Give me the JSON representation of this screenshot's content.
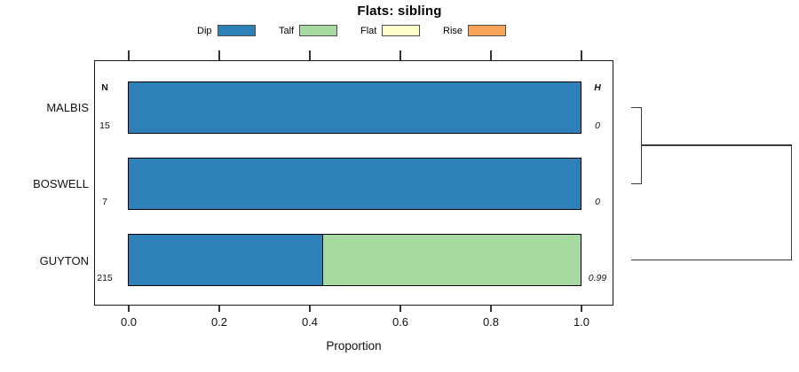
{
  "title": "Flats: sibling",
  "legend": {
    "items": [
      {
        "label": "Dip",
        "color": "#2d81b8"
      },
      {
        "label": "Talf",
        "color": "#a7daa1"
      },
      {
        "label": "Flat",
        "color": "#ffffcc"
      },
      {
        "label": "Rise",
        "color": "#f7a458"
      }
    ]
  },
  "chart_data": {
    "type": "bar",
    "orientation": "horizontal_stacked",
    "title": "Flats: sibling",
    "xlabel": "Proportion",
    "xlim": [
      0.0,
      1.0
    ],
    "x_ticks": [
      "0.0",
      "0.2",
      "0.4",
      "0.6",
      "0.8",
      "1.0"
    ],
    "grid": false,
    "legend_position": "top",
    "categories": [
      "MALBIS",
      "BOSWELL",
      "GUYTON"
    ],
    "series": [
      {
        "name": "Dip",
        "color": "#2d81b8",
        "values": [
          1.0,
          1.0,
          0.43
        ]
      },
      {
        "name": "Talf",
        "color": "#a7daa1",
        "values": [
          0,
          0,
          0.57
        ]
      },
      {
        "name": "Flat",
        "color": "#ffffcc",
        "values": [
          0,
          0,
          0
        ]
      },
      {
        "name": "Rise",
        "color": "#f7a458",
        "values": [
          0,
          0,
          0
        ]
      }
    ],
    "n_header": "N",
    "h_header": "H",
    "rows": [
      {
        "label": "MALBIS",
        "n": "15",
        "h": "0"
      },
      {
        "label": "BOSWELL",
        "n": "7",
        "h": "0"
      },
      {
        "label": "GUYTON",
        "n": "215",
        "h": "0.99"
      }
    ],
    "annotations": {
      "dendrogram": "MALBIS and BOSWELL merge first, then join GUYTON at greater height",
      "bar_border_color": "#000000"
    }
  }
}
